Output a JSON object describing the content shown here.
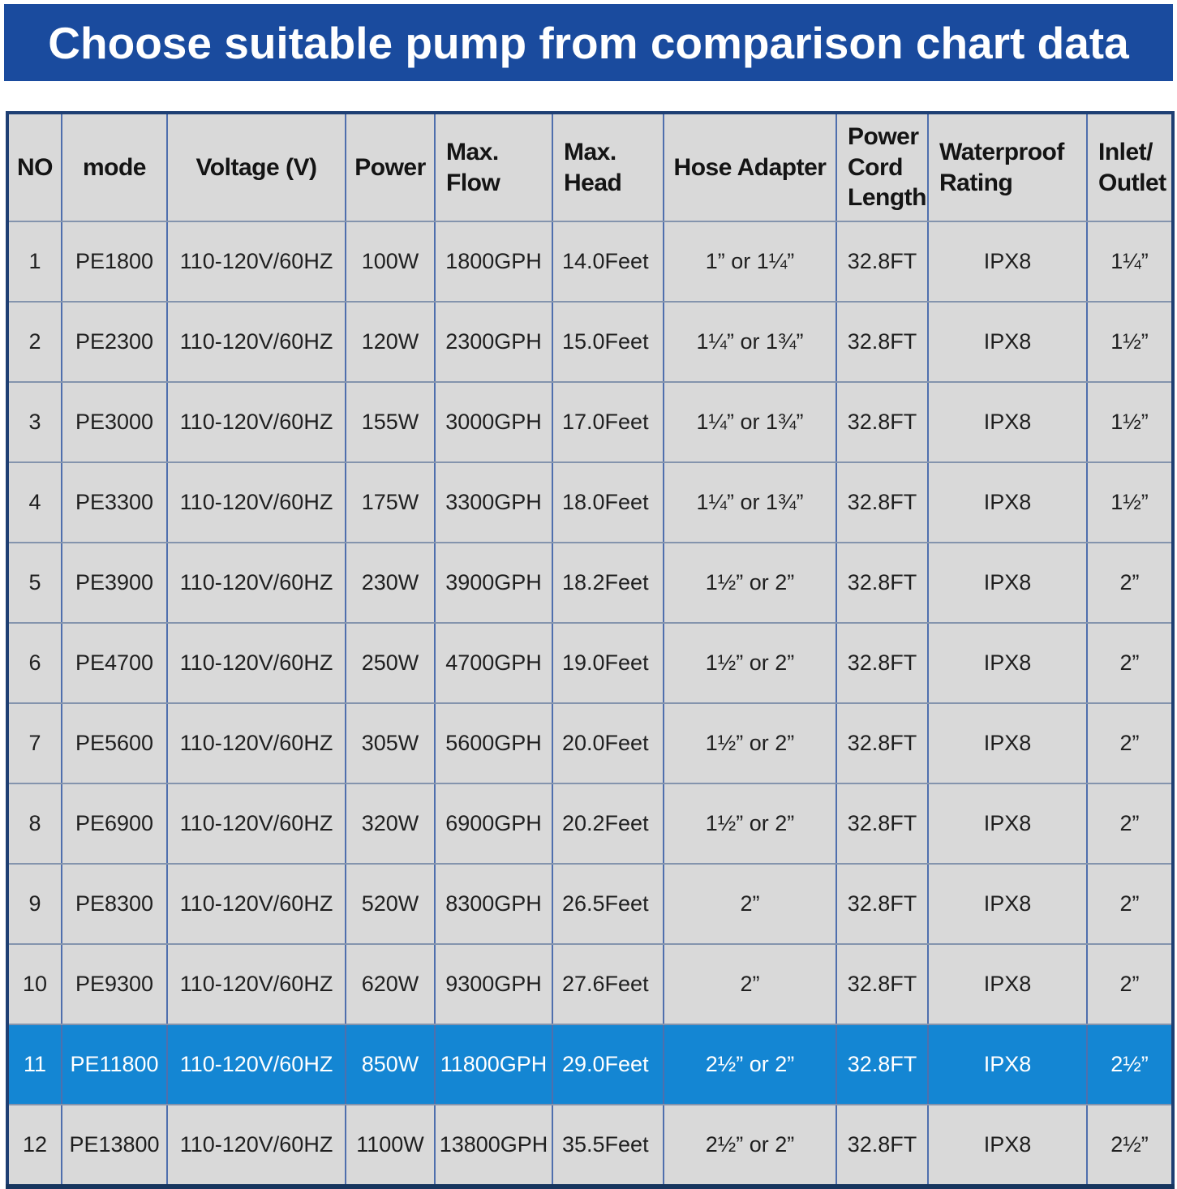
{
  "banner": {
    "bg_color": "#1a4b9e",
    "text_color": "#ffffff"
  },
  "chart_data": {
    "type": "table",
    "title": "Choose suitable pump from comparison chart data",
    "columns": [
      "NO",
      "mode",
      "Voltage (V)",
      "Power",
      "Max.\nFlow",
      "Max.\nHead",
      "Hose Adapter",
      "Power\nCord\nLength",
      "Waterproof\nRating",
      "Inlet/\nOutlet"
    ],
    "rows": [
      [
        "1",
        "PE1800",
        "110-120V/60HZ",
        "100W",
        "1800GPH",
        "14.0Feet",
        "1” or 1¼”",
        "32.8FT",
        "IPX8",
        "1¼”"
      ],
      [
        "2",
        "PE2300",
        "110-120V/60HZ",
        "120W",
        "2300GPH",
        "15.0Feet",
        "1¼” or 1¾”",
        "32.8FT",
        "IPX8",
        "1½”"
      ],
      [
        "3",
        "PE3000",
        "110-120V/60HZ",
        "155W",
        "3000GPH",
        "17.0Feet",
        "1¼” or 1¾”",
        "32.8FT",
        "IPX8",
        "1½”"
      ],
      [
        "4",
        "PE3300",
        "110-120V/60HZ",
        "175W",
        "3300GPH",
        "18.0Feet",
        "1¼” or 1¾”",
        "32.8FT",
        "IPX8",
        "1½”"
      ],
      [
        "5",
        "PE3900",
        "110-120V/60HZ",
        "230W",
        "3900GPH",
        "18.2Feet",
        "1½” or 2”",
        "32.8FT",
        "IPX8",
        "2”"
      ],
      [
        "6",
        "PE4700",
        "110-120V/60HZ",
        "250W",
        "4700GPH",
        "19.0Feet",
        "1½” or 2”",
        "32.8FT",
        "IPX8",
        "2”"
      ],
      [
        "7",
        "PE5600",
        "110-120V/60HZ",
        "305W",
        "5600GPH",
        "20.0Feet",
        "1½” or 2”",
        "32.8FT",
        "IPX8",
        "2”"
      ],
      [
        "8",
        "PE6900",
        "110-120V/60HZ",
        "320W",
        "6900GPH",
        "20.2Feet",
        "1½” or 2”",
        "32.8FT",
        "IPX8",
        "2”"
      ],
      [
        "9",
        "PE8300",
        "110-120V/60HZ",
        "520W",
        "8300GPH",
        "26.5Feet",
        "2”",
        "32.8FT",
        "IPX8",
        "2”"
      ],
      [
        "10",
        "PE9300",
        "110-120V/60HZ",
        "620W",
        "9300GPH",
        "27.6Feet",
        "2”",
        "32.8FT",
        "IPX8",
        "2”"
      ],
      [
        "11",
        "PE11800",
        "110-120V/60HZ",
        "850W",
        "11800GPH",
        "29.0Feet",
        "2½” or 2”",
        "32.8FT",
        "IPX8",
        "2½”"
      ],
      [
        "12",
        "PE13800",
        "110-120V/60HZ",
        "1100W",
        "13800GPH",
        "35.5Feet",
        "2½” or 2”",
        "32.8FT",
        "IPX8",
        "2½”"
      ]
    ],
    "highlighted_row_index": 10,
    "highlighted_row_model": "PE11800",
    "layout": {
      "grid": "on",
      "header_position": "top"
    },
    "colors": {
      "banner_bg": "#1a4b9e",
      "cell_bg": "#d9d9d9",
      "highlight_row_bg": "#1486d3",
      "highlight_row_text": "#ffffff",
      "text": "#1f1f1f",
      "outer_border": "#1e3f73",
      "vertical_grid_line": "#4f6fad",
      "horizontal_grid_line": "#8494ad"
    }
  }
}
